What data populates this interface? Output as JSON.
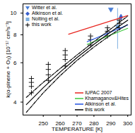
{
  "chart_data": {
    "type": "scatter",
    "xlabel": "TEMPERATURE [K]",
    "ylabel": "k(α-pinene + O₃) [10⁻¹⁷ cm³s⁻¹]",
    "log": "y",
    "xlim": [
      238,
      302
    ],
    "xticks": [
      250,
      260,
      270,
      280,
      290,
      300
    ],
    "ylim": [
      3.5,
      11
    ],
    "yticks": [
      4,
      6,
      8,
      10
    ],
    "series": [
      {
        "name": "Witter et al.",
        "type": "scatter",
        "marker": "triangle-down",
        "color": "#4a7fd6",
        "x": [
          290
        ],
        "values": [
          10.4
        ]
      },
      {
        "name": "Atkinson et al.",
        "type": "scatter",
        "marker": "diamond",
        "color": "#3a5fcd",
        "x": [
          296
        ],
        "values": [
          9.6
        ]
      },
      {
        "name": "Nolting et al.",
        "type": "scatter",
        "marker": "square",
        "color": "#7fb0e0",
        "x": [
          294
        ],
        "values": [
          8.7
        ],
        "errors": [
          1.8
        ]
      },
      {
        "name": "this work",
        "type": "scatter",
        "marker": "plus",
        "color": "#000000",
        "x": [
          243,
          243,
          243,
          243,
          253,
          253,
          253,
          253,
          263,
          263,
          263,
          263,
          278,
          278,
          278,
          288,
          288,
          288,
          295,
          295,
          295
        ],
        "values": [
          4.4,
          4.7,
          4.9,
          5.1,
          5.0,
          5.3,
          5.6,
          5.9,
          5.8,
          6.2,
          6.5,
          6.8,
          7.2,
          7.6,
          7.9,
          7.9,
          8.3,
          8.6,
          8.6,
          9.0,
          9.3
        ]
      },
      {
        "name": "IUPAC 2007",
        "type": "line",
        "line_style": "solid",
        "color": "#e8251f",
        "x": [
          265,
          300
        ],
        "values": [
          8.05,
          9.75
        ]
      },
      {
        "name": "Khamaganov&Hites",
        "type": "line",
        "line_style": "solid",
        "color": "#3cc83c",
        "x": [
          276,
          300
        ],
        "values": [
          7.25,
          8.55
        ]
      },
      {
        "name": "Atkinson et al.",
        "type": "line",
        "line_style": "solid",
        "color": "#2050e0",
        "x": [
          276,
          300
        ],
        "values": [
          7.45,
          8.85
        ]
      },
      {
        "name": "this work",
        "type": "line",
        "line_style": "solid",
        "color": "#000000",
        "x": [
          240,
          250,
          260,
          270,
          280,
          290,
          300
        ],
        "values": [
          3.9,
          4.64,
          5.45,
          6.33,
          7.25,
          8.25,
          9.3
        ]
      },
      {
        "type": "line",
        "line_style": "dashdot",
        "color": "#000000",
        "x": [
          240,
          250,
          260,
          270,
          280,
          290,
          300
        ],
        "values": [
          4.2,
          4.9,
          5.65,
          6.5,
          7.45,
          8.5,
          9.7
        ]
      },
      {
        "type": "line",
        "line_style": "dashdot",
        "color": "#000000",
        "x": [
          240,
          250,
          260,
          270,
          280,
          290,
          300
        ],
        "values": [
          3.6,
          4.4,
          5.25,
          6.15,
          7.05,
          8.0,
          8.9
        ]
      }
    ]
  }
}
